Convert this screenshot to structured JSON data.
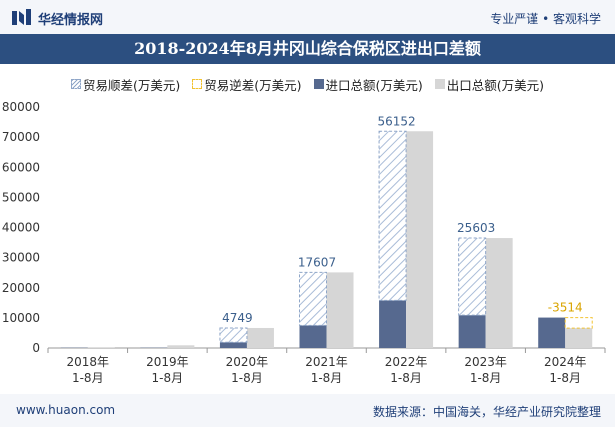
{
  "header": {
    "brand": "华经情报网",
    "slogan": "专业严谨 • 客观科学",
    "icon": "logo-icon"
  },
  "title": "2018-2024年8月井冈山综合保税区进出口差额",
  "footer": {
    "url": "www.huaon.com",
    "source": "数据来源：中国海关，华经产业研究院整理"
  },
  "colors": {
    "import": "#56698f",
    "export": "#d6d6d6",
    "surplus": "#8fa6c8",
    "deficit": "#f2c230",
    "label_surplus": "#3b5f8c",
    "label_deficit": "#d9a400"
  },
  "chart_data": {
    "type": "bar",
    "categories": [
      "2018年\n1-8月",
      "2019年\n1-8月",
      "2020年\n1-8月",
      "2021年\n1-8月",
      "2022年\n1-8月",
      "2023年\n1-8月",
      "2024年\n1-8月"
    ],
    "series": [
      {
        "name": "贸易顺差(万美元)",
        "values": [
          null,
          null,
          4749,
          17607,
          56152,
          25603,
          null
        ]
      },
      {
        "name": "贸易逆差(万美元)",
        "values": [
          null,
          null,
          null,
          null,
          null,
          null,
          -3514
        ]
      },
      {
        "name": "进口总额(万美元)",
        "values": [
          100,
          100,
          1900,
          7500,
          15800,
          10900,
          10100
        ]
      },
      {
        "name": "出口总额(万美元)",
        "values": [
          250,
          900,
          6650,
          25100,
          71950,
          36500,
          6600
        ]
      }
    ],
    "data_labels": [
      "",
      "",
      "4749",
      "17607",
      "56152",
      "25603",
      "-3514"
    ],
    "yticks": [
      "0",
      "10000",
      "20000",
      "30000",
      "40000",
      "50000",
      "60000",
      "70000",
      "80000"
    ],
    "ylim": [
      0,
      80000
    ],
    "legend_position": "top",
    "grid": false
  }
}
